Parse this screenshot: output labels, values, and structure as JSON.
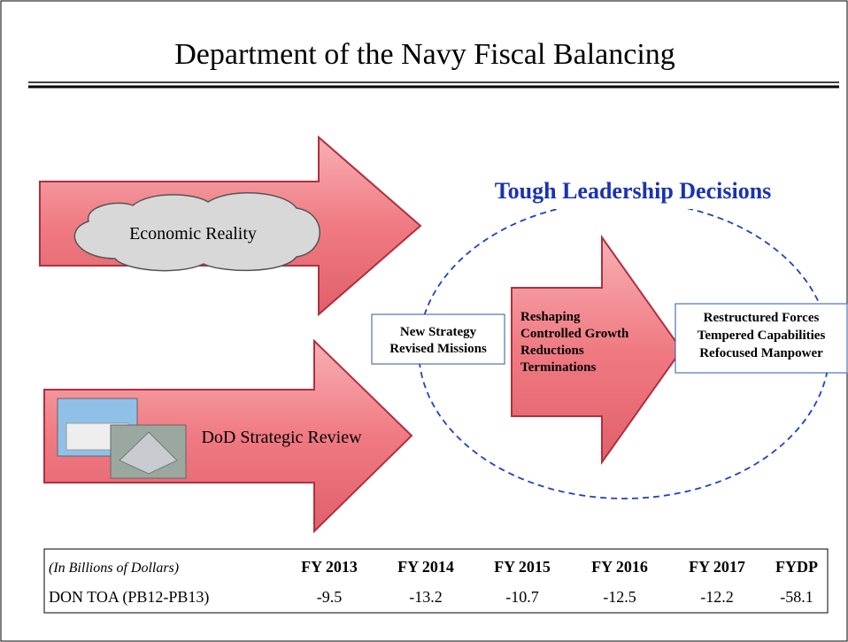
{
  "title": "Department of the Navy Fiscal Balancing",
  "heading": "Tough Leadership Decisions",
  "arrows": [
    {
      "label": "Economic Reality"
    },
    {
      "label": "DoD Strategic Review"
    }
  ],
  "input_box": {
    "lines": [
      "New Strategy",
      "Revised Missions"
    ]
  },
  "process_arrow": {
    "lines": [
      "Reshaping",
      "Controlled Growth",
      "Reductions",
      "Terminations"
    ]
  },
  "output_box": {
    "lines": [
      "Restructured Forces",
      "Tempered Capabilities",
      "Refocused Manpower"
    ]
  },
  "table": {
    "header": [
      "(In Billions of Dollars)",
      "FY 2013",
      "FY 2014",
      "FY 2015",
      "FY 2016",
      "FY 2017",
      "FYDP"
    ],
    "rows": [
      [
        "DON TOA (PB12-PB13)",
        "-9.5",
        "-13.2",
        "-10.7",
        "-12.5",
        "-12.2",
        "-58.1"
      ]
    ]
  }
}
